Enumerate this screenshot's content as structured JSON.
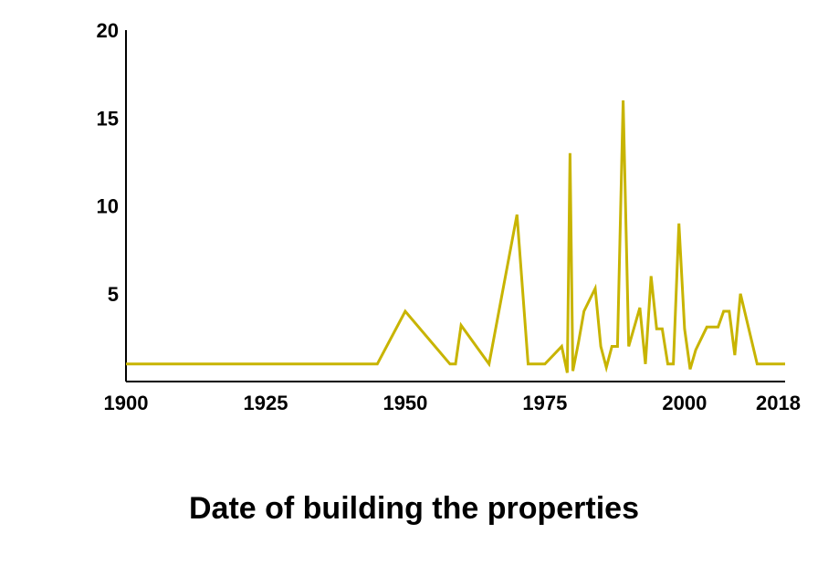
{
  "chart_data": {
    "type": "line",
    "title": "",
    "xlabel": "Date of building the properties",
    "ylabel": "",
    "xlim": [
      1900,
      2018
    ],
    "ylim": [
      0,
      20
    ],
    "x_ticks": [
      1900,
      1925,
      1950,
      1975,
      2000,
      2018
    ],
    "y_ticks": [
      5,
      10,
      15,
      20
    ],
    "grid": false,
    "legend": "none",
    "line_color": "#c8b400",
    "series": [
      {
        "x": [
          1900,
          1945,
          1950,
          1958,
          1959,
          1960,
          1965,
          1970,
          1972,
          1975,
          1978,
          1979,
          1979.5,
          1980,
          1981,
          1982,
          1984,
          1985,
          1986,
          1987,
          1988,
          1989,
          1990,
          1992,
          1993,
          1994,
          1995,
          1996,
          1997,
          1998,
          1999,
          2000,
          2001,
          2002,
          2004,
          2005,
          2006,
          2007,
          2008,
          2009,
          2010,
          2013,
          2018
        ],
        "y": [
          1,
          1,
          4,
          1,
          1,
          3.2,
          1,
          9.5,
          1,
          1,
          2,
          0.5,
          13,
          0.6,
          2.2,
          4,
          5.3,
          2,
          0.8,
          2,
          2,
          16,
          2,
          4.2,
          1,
          6,
          3,
          3,
          1,
          1,
          9,
          3,
          0.7,
          1.8,
          3.1,
          3.1,
          3.1,
          4,
          4,
          1.5,
          5,
          1,
          1
        ]
      }
    ]
  }
}
